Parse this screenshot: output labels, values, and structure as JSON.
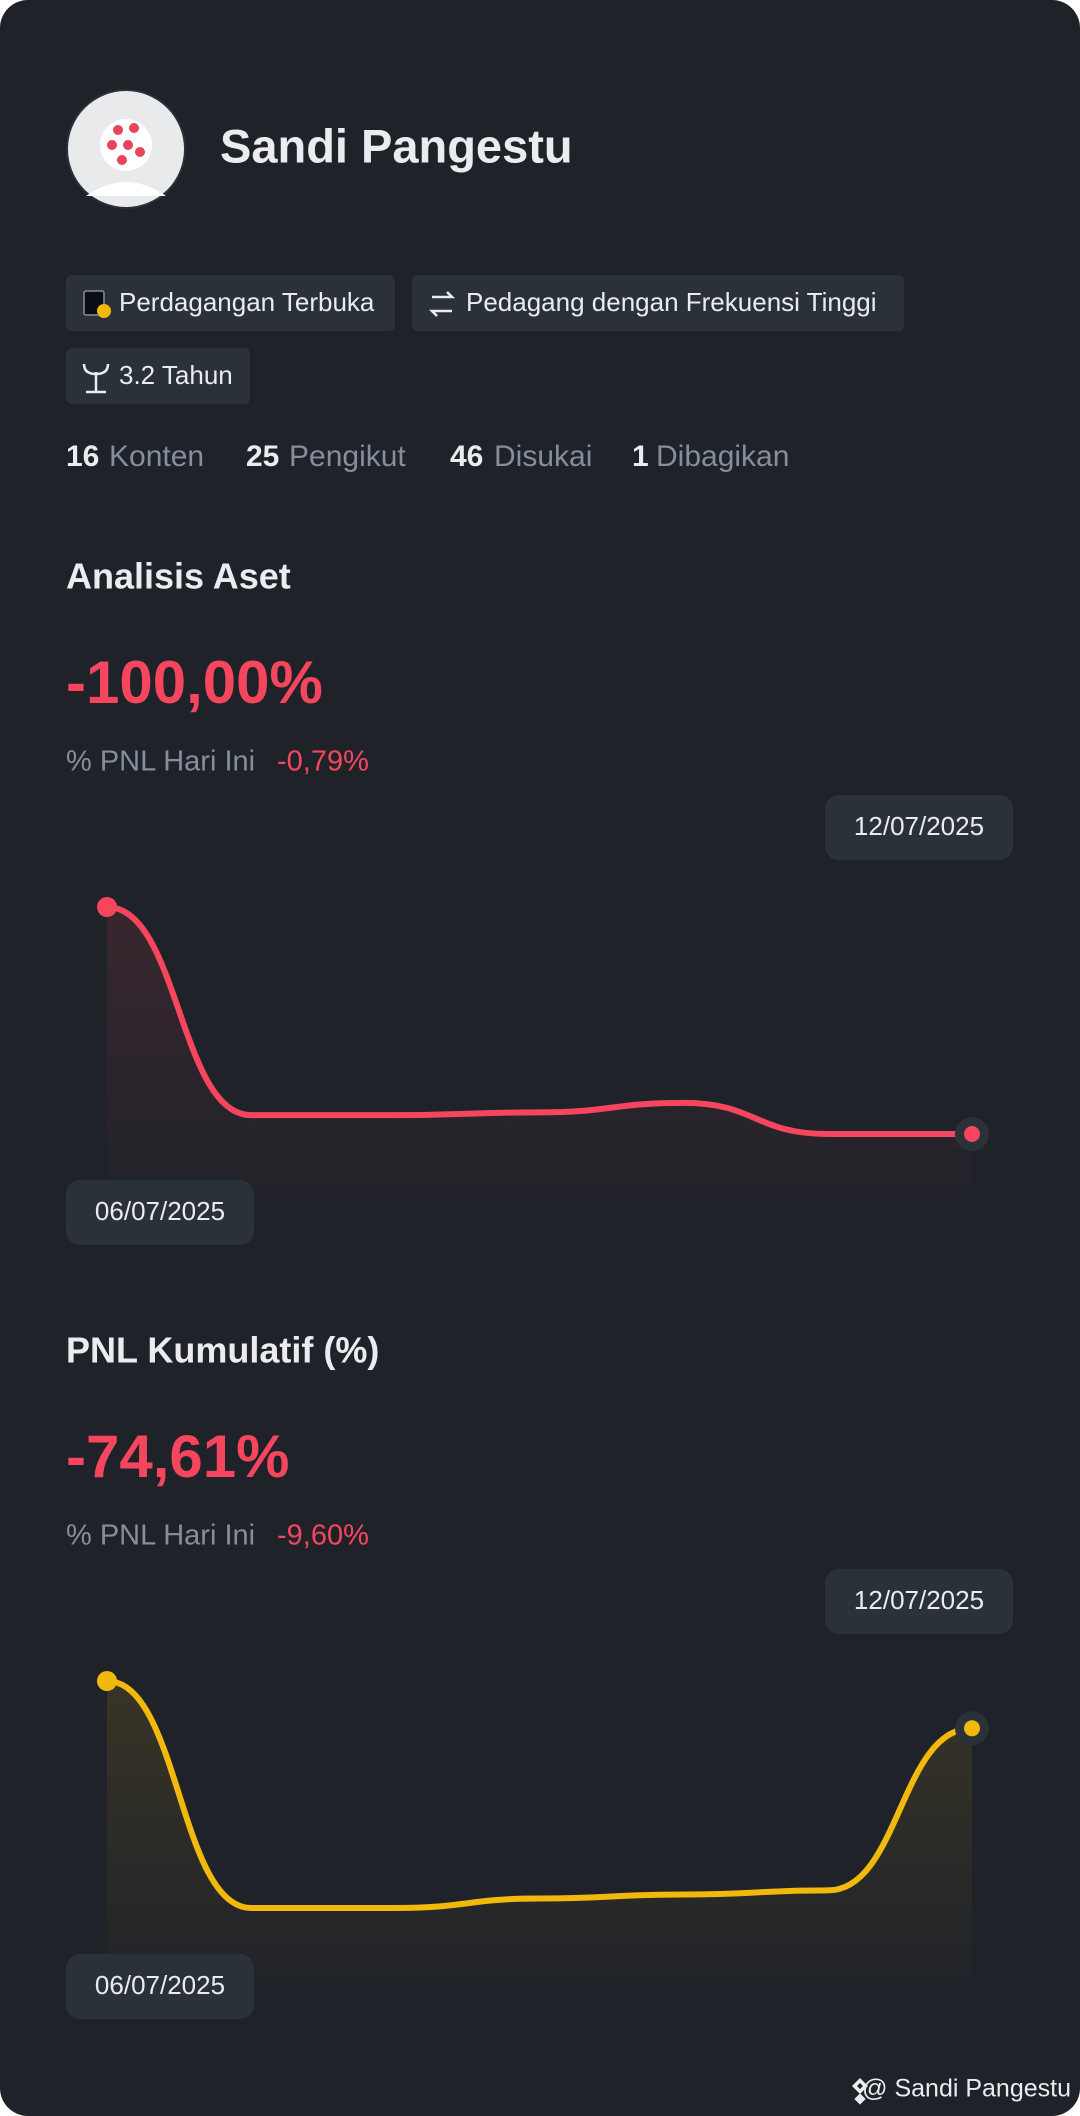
{
  "profile": {
    "name": "Sandi Pangestu",
    "badges": [
      "Perdagangan Terbuka",
      "Pedagang dengan Frekuensi Tinggi",
      "3.2 Tahun"
    ],
    "stats": [
      {
        "value": "16",
        "label": "Konten"
      },
      {
        "value": "25",
        "label": "Pengikut"
      },
      {
        "value": "46",
        "label": "Disukai"
      },
      {
        "value": "1",
        "label": "Dibagikan"
      }
    ]
  },
  "chart_data": [
    {
      "type": "line",
      "title": "Analisis Aset",
      "headline": "-100,00%",
      "subtitle": "% PNL Hari Ini",
      "subtitle_value": "-0,79%",
      "categories": [
        "06/07/2025",
        null,
        null,
        null,
        null,
        null,
        "12/07/2025"
      ],
      "series": [
        {
          "color": "#f6465d",
          "values": [
            168,
            14,
            14,
            16,
            23,
            0,
            0
          ]
        }
      ]
    },
    {
      "type": "line",
      "title": "PNL Kumulatif (%)",
      "headline": "-74,61%",
      "subtitle": "% PNL Hari Ini",
      "subtitle_value": "-9,60%",
      "categories": [
        "06/07/2025",
        null,
        null,
        null,
        null,
        null,
        "12/07/2025"
      ],
      "series": [
        {
          "color": "#f0b90b",
          "values": [
            168,
            0,
            0,
            7,
            10,
            13,
            133
          ]
        }
      ]
    }
  ],
  "footer": "@ Sandi Pangestu"
}
